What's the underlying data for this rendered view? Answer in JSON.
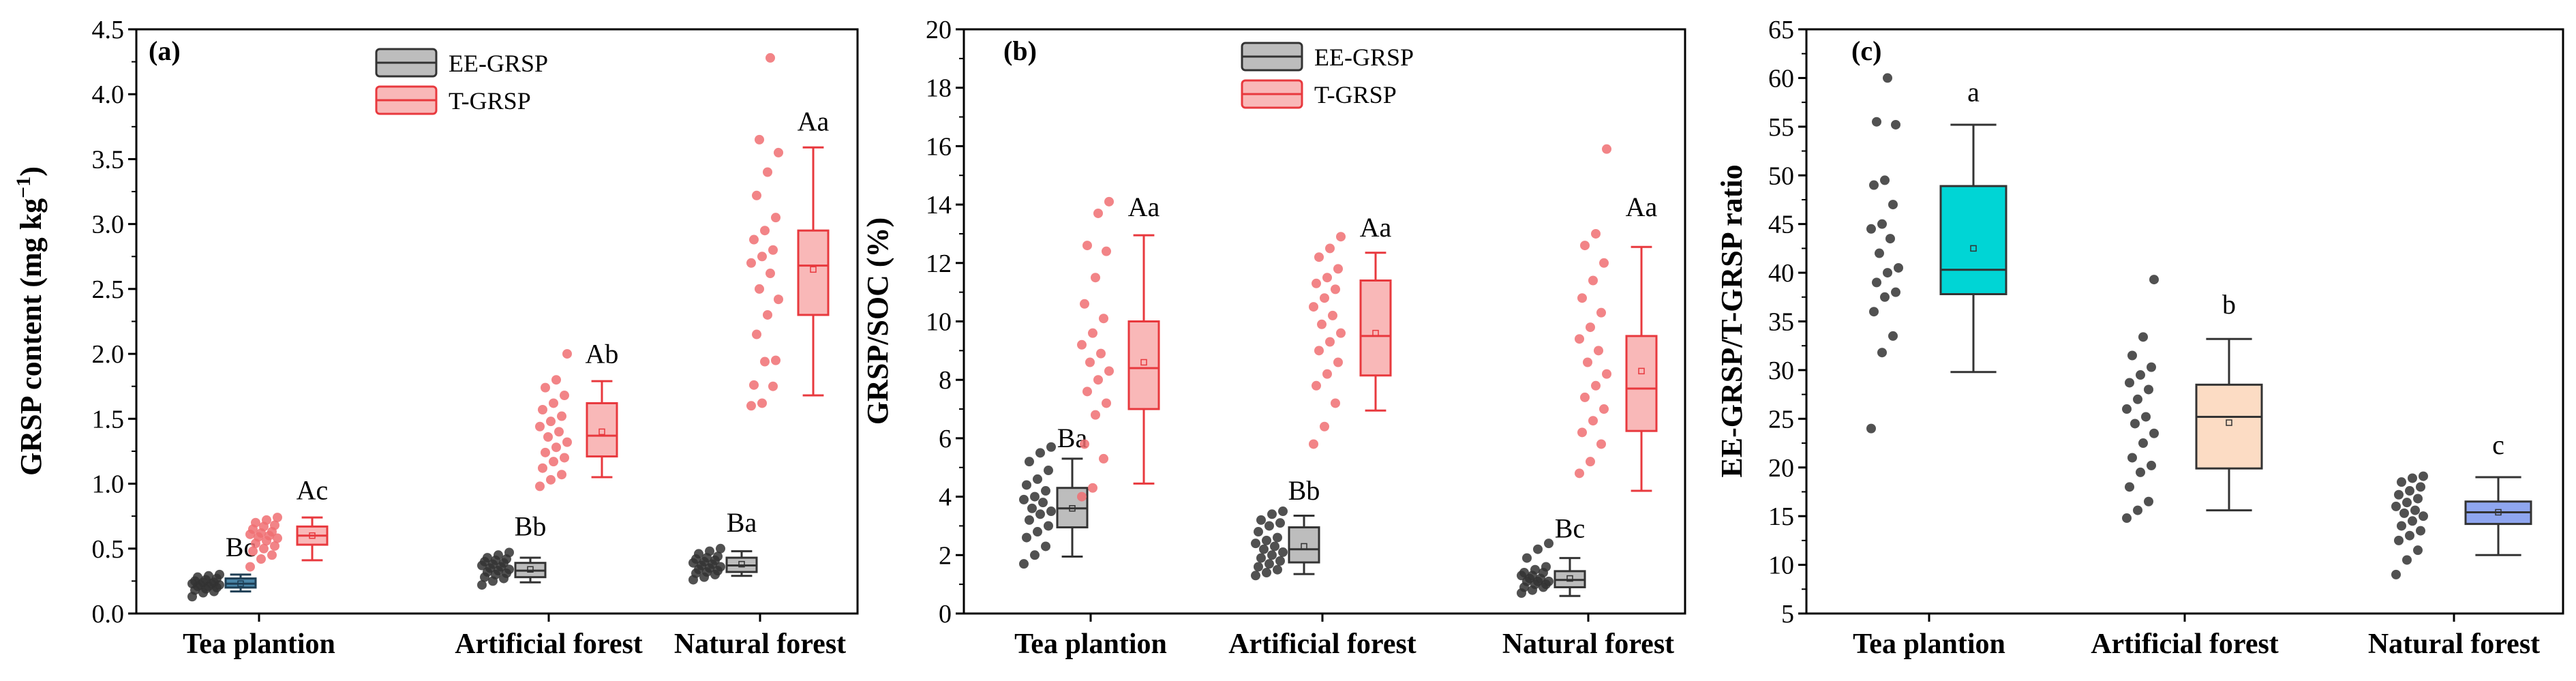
{
  "chart_data": [
    {
      "id": "a",
      "type": "box",
      "panel_label": "(a)",
      "ylabel_main": "GRSP content (mg kg",
      "ylabel_sup": "−1",
      "ylabel_close": ")",
      "ylim": [
        0,
        4.5
      ],
      "yticks": [
        "0.0",
        "0.5",
        "1.0",
        "1.5",
        "2.0",
        "2.5",
        "3.0",
        "3.5",
        "4.0",
        "4.5"
      ],
      "categories": [
        "Tea plantion",
        "Artificial forest",
        "Natural forest"
      ],
      "legend": [
        {
          "name": "EE-GRSP",
          "fill": "#bdbdbd",
          "stroke": "#333333"
        },
        {
          "name": "T-GRSP",
          "fill": "#f9b8b8",
          "stroke": "#e8393e"
        }
      ],
      "groups": [
        {
          "name": "Tea plantion EE-GRSP",
          "cat": 0,
          "side": "left",
          "fill": "#4a86a8",
          "stroke": "#1f3f55",
          "dot": "#333333",
          "q1": 0.2,
          "median": 0.23,
          "q3": 0.27,
          "wlo": 0.17,
          "whi": 0.3,
          "mean": 0.23,
          "letter": "Bc",
          "letter_y": 0.44,
          "points": [
            0.13,
            0.16,
            0.17,
            0.18,
            0.19,
            0.2,
            0.21,
            0.21,
            0.22,
            0.22,
            0.23,
            0.23,
            0.24,
            0.24,
            0.25,
            0.26,
            0.27,
            0.28,
            0.29,
            0.3
          ]
        },
        {
          "name": "Tea plantion T-GRSP",
          "cat": 0,
          "side": "right",
          "fill": "#f9b8b8",
          "stroke": "#e8393e",
          "dot": "#f06e72",
          "q1": 0.53,
          "median": 0.6,
          "q3": 0.67,
          "wlo": 0.41,
          "whi": 0.74,
          "mean": 0.6,
          "letter": "Ac",
          "letter_y": 0.88,
          "points": [
            0.36,
            0.42,
            0.45,
            0.48,
            0.5,
            0.52,
            0.54,
            0.56,
            0.58,
            0.59,
            0.6,
            0.61,
            0.62,
            0.63,
            0.65,
            0.67,
            0.68,
            0.7,
            0.72,
            0.74
          ]
        },
        {
          "name": "Artificial forest EE-GRSP",
          "cat": 1,
          "side": "left",
          "fill": "#bdbdbd",
          "stroke": "#333333",
          "dot": "#333333",
          "q1": 0.28,
          "median": 0.33,
          "q3": 0.39,
          "wlo": 0.24,
          "whi": 0.43,
          "mean": 0.34,
          "letter": "Bb",
          "letter_y": 0.6,
          "points": [
            0.22,
            0.25,
            0.27,
            0.28,
            0.3,
            0.31,
            0.32,
            0.33,
            0.34,
            0.35,
            0.36,
            0.37,
            0.38,
            0.39,
            0.4,
            0.41,
            0.42,
            0.43,
            0.45,
            0.47
          ]
        },
        {
          "name": "Artificial forest T-GRSP",
          "cat": 1,
          "side": "right",
          "fill": "#f9b8b8",
          "stroke": "#e8393e",
          "dot": "#f06e72",
          "q1": 1.21,
          "median": 1.37,
          "q3": 1.62,
          "wlo": 1.05,
          "whi": 1.79,
          "mean": 1.4,
          "letter": "Ab",
          "letter_y": 1.93,
          "points": [
            0.98,
            1.03,
            1.07,
            1.12,
            1.17,
            1.2,
            1.24,
            1.28,
            1.32,
            1.36,
            1.4,
            1.44,
            1.48,
            1.52,
            1.57,
            1.62,
            1.68,
            1.74,
            1.8,
            2.0
          ]
        },
        {
          "name": "Natural forest EE-GRSP",
          "cat": 2,
          "side": "left",
          "fill": "#bdbdbd",
          "stroke": "#333333",
          "dot": "#333333",
          "q1": 0.32,
          "median": 0.37,
          "q3": 0.43,
          "wlo": 0.29,
          "whi": 0.48,
          "mean": 0.38,
          "letter": "Ba",
          "letter_y": 0.63,
          "points": [
            0.26,
            0.28,
            0.3,
            0.31,
            0.32,
            0.33,
            0.34,
            0.35,
            0.36,
            0.37,
            0.38,
            0.39,
            0.4,
            0.41,
            0.42,
            0.43,
            0.44,
            0.46,
            0.48,
            0.5
          ]
        },
        {
          "name": "Natural forest T-GRSP",
          "cat": 2,
          "side": "right",
          "fill": "#f9b8b8",
          "stroke": "#e8393e",
          "dot": "#f06e72",
          "q1": 2.3,
          "median": 2.68,
          "q3": 2.95,
          "wlo": 1.68,
          "whi": 3.59,
          "mean": 2.65,
          "letter": "Aa",
          "letter_y": 3.72,
          "points": [
            1.6,
            1.62,
            1.75,
            1.76,
            1.94,
            1.95,
            2.15,
            2.3,
            2.42,
            2.5,
            2.62,
            2.7,
            2.75,
            2.8,
            2.88,
            2.95,
            3.05,
            3.22,
            3.4,
            3.55,
            3.65,
            4.28
          ]
        }
      ]
    },
    {
      "id": "b",
      "type": "box",
      "panel_label": "(b)",
      "ylabel_main": "GRSP/SOC (%)",
      "ylim": [
        0,
        20
      ],
      "yticks": [
        "0",
        "2",
        "4",
        "6",
        "8",
        "10",
        "12",
        "14",
        "16",
        "18",
        "20"
      ],
      "categories": [
        "Tea plantion",
        "Artificial forest",
        "Natural forest"
      ],
      "legend": [
        {
          "name": "EE-GRSP",
          "fill": "#bdbdbd",
          "stroke": "#333333"
        },
        {
          "name": "T-GRSP",
          "fill": "#f9b8b8",
          "stroke": "#e8393e"
        }
      ],
      "groups": [
        {
          "name": "Tea plantion EE-GRSP",
          "cat": 0,
          "side": "left",
          "fill": "#bdbdbd",
          "stroke": "#333333",
          "dot": "#333333",
          "q1": 2.95,
          "median": 3.6,
          "q3": 4.3,
          "wlo": 1.95,
          "whi": 5.3,
          "mean": 3.6,
          "letter": "Ba",
          "letter_y": 5.7,
          "points": [
            1.7,
            2.0,
            2.3,
            2.6,
            2.8,
            3.0,
            3.2,
            3.4,
            3.5,
            3.6,
            3.8,
            3.9,
            4.0,
            4.2,
            4.4,
            4.6,
            4.9,
            5.2,
            5.5,
            5.7
          ]
        },
        {
          "name": "Tea plantion T-GRSP",
          "cat": 0,
          "side": "right",
          "fill": "#f9b8b8",
          "stroke": "#e8393e",
          "dot": "#f06e72",
          "q1": 7.0,
          "median": 8.4,
          "q3": 10.0,
          "wlo": 4.45,
          "whi": 12.95,
          "mean": 8.6,
          "letter": "Aa",
          "letter_y": 13.6,
          "points": [
            4.0,
            4.3,
            5.3,
            5.8,
            6.8,
            7.2,
            7.6,
            8.0,
            8.3,
            8.6,
            8.9,
            9.2,
            9.6,
            10.1,
            10.6,
            11.5,
            12.4,
            12.6,
            13.7,
            14.1
          ]
        },
        {
          "name": "Artificial forest EE-GRSP",
          "cat": 1,
          "side": "left",
          "fill": "#bdbdbd",
          "stroke": "#333333",
          "dot": "#333333",
          "q1": 1.75,
          "median": 2.2,
          "q3": 2.95,
          "wlo": 1.35,
          "whi": 3.35,
          "mean": 2.3,
          "letter": "Bb",
          "letter_y": 3.9,
          "points": [
            1.3,
            1.4,
            1.5,
            1.6,
            1.7,
            1.8,
            1.9,
            2.0,
            2.1,
            2.2,
            2.3,
            2.4,
            2.5,
            2.6,
            2.8,
            3.0,
            3.1,
            3.2,
            3.4,
            3.5
          ]
        },
        {
          "name": "Artificial forest T-GRSP",
          "cat": 1,
          "side": "right",
          "fill": "#f9b8b8",
          "stroke": "#e8393e",
          "dot": "#f06e72",
          "q1": 8.15,
          "median": 9.5,
          "q3": 11.4,
          "wlo": 6.95,
          "whi": 12.35,
          "mean": 9.6,
          "letter": "Aa",
          "letter_y": 12.9,
          "points": [
            5.8,
            6.4,
            7.2,
            7.8,
            8.2,
            8.6,
            9.0,
            9.3,
            9.6,
            9.9,
            10.2,
            10.5,
            10.8,
            11.1,
            11.3,
            11.5,
            11.8,
            12.2,
            12.5,
            12.9
          ]
        },
        {
          "name": "Natural forest EE-GRSP",
          "cat": 2,
          "side": "left",
          "fill": "#bdbdbd",
          "stroke": "#333333",
          "dot": "#333333",
          "q1": 0.9,
          "median": 1.15,
          "q3": 1.45,
          "wlo": 0.6,
          "whi": 1.9,
          "mean": 1.2,
          "letter": "Bc",
          "letter_y": 2.6,
          "points": [
            0.7,
            0.8,
            0.9,
            0.9,
            1.0,
            1.0,
            1.1,
            1.1,
            1.1,
            1.2,
            1.2,
            1.3,
            1.3,
            1.4,
            1.4,
            1.5,
            1.6,
            1.9,
            2.2,
            2.4
          ]
        },
        {
          "name": "Natural forest T-GRSP",
          "cat": 2,
          "side": "right",
          "fill": "#f9b8b8",
          "stroke": "#e8393e",
          "dot": "#f06e72",
          "q1": 6.25,
          "median": 7.7,
          "q3": 9.5,
          "wlo": 4.2,
          "whi": 12.55,
          "mean": 8.3,
          "letter": "Aa",
          "letter_y": 13.6,
          "points": [
            4.8,
            5.2,
            5.8,
            6.2,
            6.6,
            7.0,
            7.4,
            7.8,
            8.2,
            8.6,
            9.0,
            9.4,
            9.8,
            10.3,
            10.8,
            11.4,
            12.0,
            12.6,
            13.0,
            15.9
          ]
        }
      ]
    },
    {
      "id": "c",
      "type": "box",
      "panel_label": "(c)",
      "ylabel_main": "EE-GRSP/T-GRSP ratio",
      "ylim": [
        5,
        65
      ],
      "yticks": [
        "5",
        "10",
        "15",
        "20",
        "25",
        "30",
        "35",
        "40",
        "45",
        "50",
        "55",
        "60",
        "65"
      ],
      "categories": [
        "Tea plantion",
        "Artificial forest",
        "Natural forest"
      ],
      "legend": [],
      "groups": [
        {
          "name": "Tea plantion ratio",
          "cat": 0,
          "side": "single",
          "fill": "#00d5d5",
          "stroke": "#333333",
          "dot": "#333333",
          "q1": 37.8,
          "median": 40.3,
          "q3": 48.9,
          "wlo": 29.8,
          "whi": 55.2,
          "mean": 42.5,
          "letter": "a",
          "letter_y": 57.6,
          "points": [
            24.0,
            31.8,
            33.5,
            36.0,
            37.5,
            38.0,
            39.0,
            40.0,
            40.5,
            42.0,
            43.5,
            44.5,
            45.0,
            47.0,
            49.0,
            49.5,
            55.2,
            55.5,
            60.0
          ]
        },
        {
          "name": "Artificial forest ratio",
          "cat": 1,
          "side": "single",
          "fill": "#fcdcc4",
          "stroke": "#333333",
          "dot": "#333333",
          "q1": 19.9,
          "median": 25.2,
          "q3": 28.5,
          "wlo": 15.6,
          "whi": 33.2,
          "mean": 24.6,
          "letter": "b",
          "letter_y": 35.8,
          "points": [
            14.8,
            15.6,
            16.5,
            18.0,
            19.5,
            20.2,
            21.0,
            22.5,
            23.5,
            24.5,
            25.2,
            26.0,
            27.0,
            28.0,
            28.7,
            29.5,
            30.3,
            31.5,
            33.4,
            39.3
          ]
        },
        {
          "name": "Natural forest ratio",
          "cat": 2,
          "side": "single",
          "fill": "#8fa6f0",
          "stroke": "#333333",
          "dot": "#333333",
          "q1": 14.2,
          "median": 15.4,
          "q3": 16.5,
          "wlo": 11.0,
          "whi": 19.0,
          "mean": 15.4,
          "letter": "c",
          "letter_y": 21.4,
          "points": [
            9.0,
            10.5,
            11.5,
            12.5,
            13.0,
            13.5,
            14.0,
            14.5,
            15.0,
            15.3,
            15.6,
            16.0,
            16.4,
            16.8,
            17.2,
            17.6,
            18.0,
            18.5,
            18.9,
            19.1
          ]
        }
      ]
    }
  ]
}
